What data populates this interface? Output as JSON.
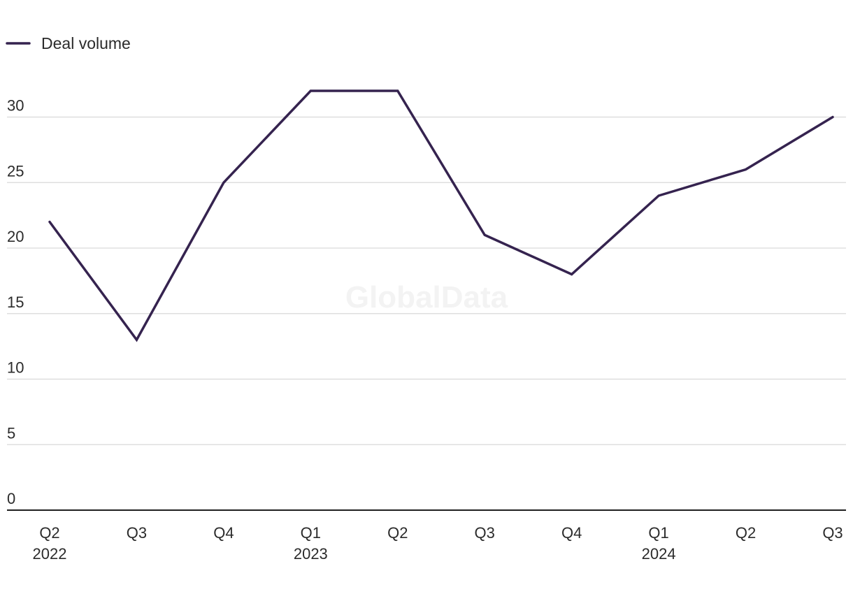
{
  "chart_data": {
    "type": "line",
    "title": "",
    "xlabel": "",
    "ylabel": "",
    "categories": [
      {
        "quarter": "Q2",
        "year": "2022"
      },
      {
        "quarter": "Q3",
        "year": ""
      },
      {
        "quarter": "Q4",
        "year": ""
      },
      {
        "quarter": "Q1",
        "year": "2023"
      },
      {
        "quarter": "Q2",
        "year": ""
      },
      {
        "quarter": "Q3",
        "year": ""
      },
      {
        "quarter": "Q4",
        "year": ""
      },
      {
        "quarter": "Q1",
        "year": "2024"
      },
      {
        "quarter": "Q2",
        "year": ""
      },
      {
        "quarter": "Q3",
        "year": ""
      }
    ],
    "series": [
      {
        "name": "Deal volume",
        "color": "#35234f",
        "values": [
          22,
          13,
          25,
          32,
          32,
          21,
          18,
          24,
          26,
          30
        ]
      }
    ],
    "y_ticks": [
      "0",
      "5",
      "10",
      "15",
      "20",
      "25",
      "30"
    ],
    "ylim": [
      0,
      32
    ],
    "grid": true,
    "legend_position": "top-left",
    "watermark": "GlobalData"
  }
}
